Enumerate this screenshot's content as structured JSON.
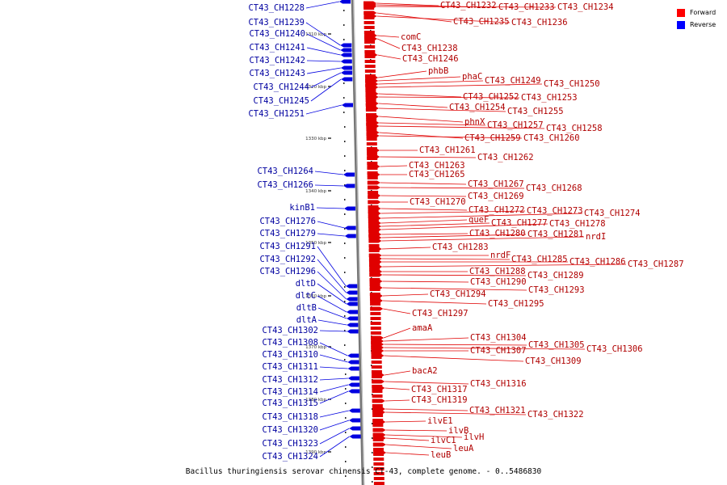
{
  "legend": [
    {
      "label": "Forward",
      "color": "#ff0000"
    },
    {
      "label": "Reverse",
      "color": "#0000ff"
    }
  ],
  "caption": "Bacillus thuringiensis serovar chinensis CT-43, complete genome. - 0..5486830",
  "colors": {
    "forward": "#e00000",
    "reverse": "#0000e0",
    "axis": "#888888"
  },
  "ticks": [
    "1310 kbp",
    "1320 kbp",
    "1330 kbp",
    "1340 kbp",
    "1350 kbp",
    "1360 kbp",
    "1370 kbp",
    "1380 kbp",
    "1390 kbp"
  ],
  "forward_genes": [
    "CT43_CH1232",
    "CT43_CH1233",
    "CT43_CH1234",
    "CT43_CH1235",
    "CT43_CH1236",
    "comC",
    "CT43_CH1238",
    "CT43_CH1246",
    "phbB",
    "phaC",
    "CT43_CH1249",
    "CT43_CH1250",
    "CT43_CH1252",
    "CT43_CH1253",
    "CT43_CH1254",
    "CT43_CH1255",
    "phnX",
    "CT43_CH1257",
    "CT43_CH1258",
    "CT43_CH1259",
    "CT43_CH1260",
    "CT43_CH1261",
    "CT43_CH1262",
    "CT43_CH1263",
    "CT43_CH1265",
    "CT43_CH1267",
    "CT43_CH1268",
    "CT43_CH1269",
    "CT43_CH1270",
    "CT43_CH1272",
    "CT43_CH1273",
    "CT43_CH1274",
    "queF",
    "CT43_CH1277",
    "CT43_CH1278",
    "CT43_CH1280",
    "CT43_CH1281",
    "nrdI",
    "CT43_CH1283",
    "nrdF",
    "CT43_CH1285",
    "CT43_CH1286",
    "CT43_CH1287",
    "CT43_CH1288",
    "CT43_CH1289",
    "CT43_CH1290",
    "CT43_CH1293",
    "CT43_CH1294",
    "CT43_CH1295",
    "CT43_CH1297",
    "amaA",
    "CT43_CH1304",
    "CT43_CH1305",
    "CT43_CH1306",
    "CT43_CH1307",
    "CT43_CH1309",
    "bacA2",
    "CT43_CH1316",
    "CT43_CH1317",
    "CT43_CH1319",
    "CT43_CH1321",
    "CT43_CH1322",
    "ilvE1",
    "ilvB",
    "ilvH",
    "ilvC1",
    "leuA",
    "leuB"
  ],
  "reverse_genes": [
    "CT43_CH1228",
    "CT43_CH1239",
    "CT43_CH1240",
    "CT43_CH1241",
    "CT43_CH1242",
    "CT43_CH1243",
    "CT43_CH1244",
    "CT43_CH1245",
    "CT43_CH1251",
    "CT43_CH1264",
    "CT43_CH1266",
    "kinB1",
    "CT43_CH1276",
    "CT43_CH1279",
    "CT43_CH1291",
    "CT43_CH1292",
    "CT43_CH1296",
    "dltD",
    "dltC",
    "dltB",
    "dltA",
    "CT43_CH1302",
    "CT43_CH1308",
    "CT43_CH1310",
    "CT43_CH1311",
    "CT43_CH1312",
    "CT43_CH1314",
    "CT43_CH1315",
    "CT43_CH1318",
    "CT43_CH1320",
    "CT43_CH1323",
    "CT43_CH1324"
  ]
}
